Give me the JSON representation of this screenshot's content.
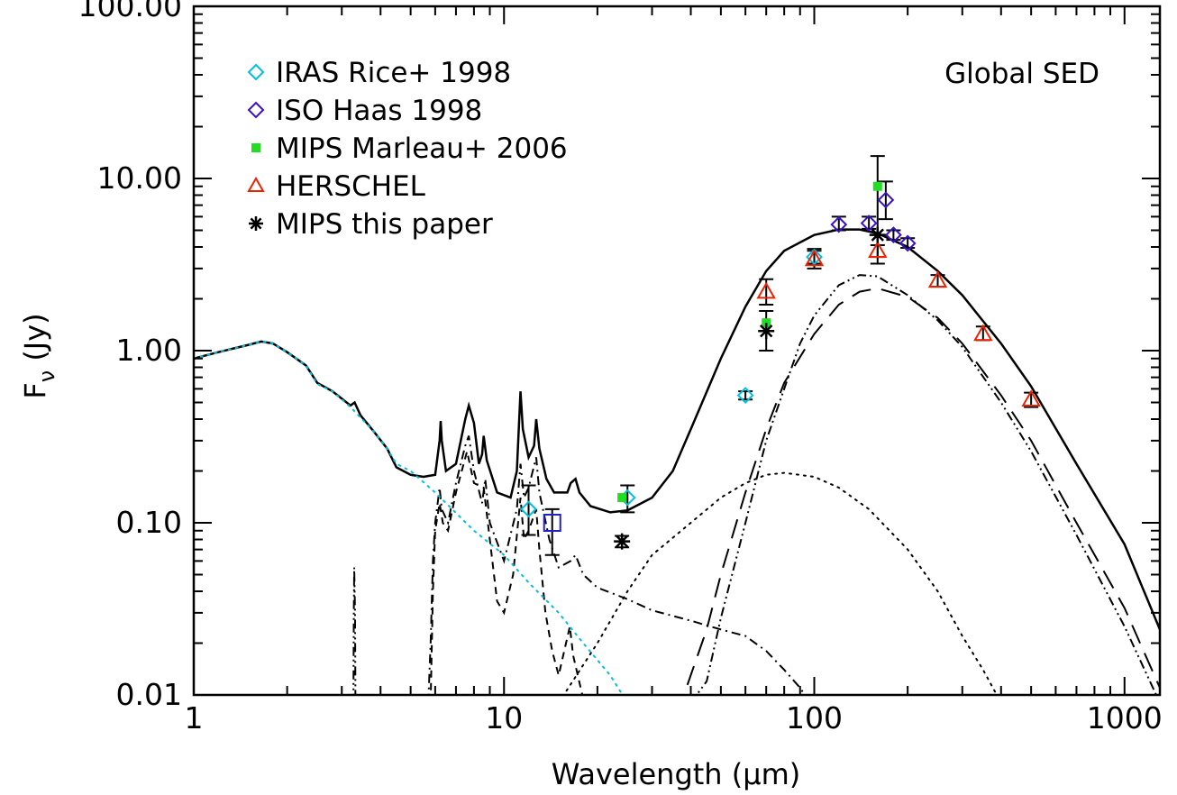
{
  "chart_data": {
    "type": "scatter",
    "xlabel": "Wavelength (µm)",
    "ylabel_main": "F",
    "ylabel_sub": "ν",
    "ylabel_unit": "(Jy)",
    "xscale": "log",
    "yscale": "log",
    "xlim": [
      1,
      1300
    ],
    "ylim": [
      0.01,
      100
    ],
    "x_ticks": [
      1,
      10,
      100,
      1000
    ],
    "x_tick_labels": [
      "1",
      "10",
      "100",
      "1000"
    ],
    "y_ticks": [
      0.01,
      0.1,
      1,
      10,
      100
    ],
    "y_tick_labels": [
      "0.01",
      "0.10",
      "1.00",
      "10.00",
      "100.00"
    ],
    "annotation": "Global SED",
    "legend_position": "top-left",
    "series": [
      {
        "name": "IRAS Rice+ 1998",
        "marker": "diamond",
        "color": "#00bfe0",
        "points": [
          {
            "x": 12,
            "y": 0.12,
            "yerr": [
              0.085,
              0.165
            ]
          },
          {
            "x": 25,
            "y": 0.14,
            "yerr": [
              0.115,
              0.165
            ]
          },
          {
            "x": 60,
            "y": 0.55,
            "yerr": [
              0.52,
              0.58
            ]
          },
          {
            "x": 100,
            "y": 3.5,
            "yerr": [
              3.2,
              3.8
            ]
          }
        ]
      },
      {
        "name": "ISO Haas 1998",
        "marker": "diamond",
        "color": "#3a10c8",
        "points": [
          {
            "x": 120,
            "y": 5.4,
            "yerr": [
              5.0,
              6.0
            ]
          },
          {
            "x": 150,
            "y": 5.5,
            "yerr": [
              5.1,
              6.0
            ]
          },
          {
            "x": 170,
            "y": 7.5,
            "yerr": [
              5.8,
              9.6
            ]
          },
          {
            "x": 180,
            "y": 4.7,
            "yerr": [
              4.4,
              5.0
            ]
          },
          {
            "x": 200,
            "y": 4.2,
            "yerr": [
              3.95,
              4.5
            ]
          }
        ]
      },
      {
        "name": "MIPS Marleau+ 2006",
        "marker": "square",
        "color": "#22dd22",
        "points": [
          {
            "x": 24,
            "y": 0.14
          },
          {
            "x": 70,
            "y": 1.45
          },
          {
            "x": 160,
            "y": 9.0
          }
        ]
      },
      {
        "name": "HERSCHEL",
        "marker": "triangle",
        "color": "#ee2200",
        "points": [
          {
            "x": 70,
            "y": 2.2,
            "yerr": [
              1.85,
              2.6
            ]
          },
          {
            "x": 100,
            "y": 3.4,
            "yerr": [
              3.0,
              3.9
            ]
          },
          {
            "x": 160,
            "y": 3.8,
            "yerr": [
              3.5,
              4.1
            ]
          },
          {
            "x": 250,
            "y": 2.55,
            "yerr": [
              2.35,
              2.75
            ]
          },
          {
            "x": 350,
            "y": 1.25,
            "yerr": [
              1.15,
              1.38
            ]
          },
          {
            "x": 500,
            "y": 0.52,
            "yerr": [
              0.47,
              0.57
            ]
          }
        ]
      },
      {
        "name": "MIPS this paper",
        "marker": "asterisk",
        "color": "#000000",
        "points": [
          {
            "x": 24,
            "y": 0.078,
            "yerr": [
              0.072,
              0.084
            ]
          },
          {
            "x": 70,
            "y": 1.3,
            "yerr": [
              1.0,
              1.7
            ]
          },
          {
            "x": 160,
            "y": 4.7,
            "yerr": [
              3.2,
              13.5
            ]
          }
        ]
      }
    ],
    "extra_points": [
      {
        "marker": "square",
        "color": "#2020cc",
        "x": 14.3,
        "y": 0.1,
        "yerr": [
          0.065,
          0.12
        ]
      }
    ],
    "model_curves": [
      {
        "style": "solid",
        "color": "#000000",
        "points": [
          [
            1,
            0.9
          ],
          [
            1.2,
            0.98
          ],
          [
            1.5,
            1.08
          ],
          [
            1.65,
            1.13
          ],
          [
            1.8,
            1.1
          ],
          [
            2.0,
            0.98
          ],
          [
            2.3,
            0.82
          ],
          [
            2.5,
            0.65
          ],
          [
            2.8,
            0.58
          ],
          [
            3.2,
            0.48
          ],
          [
            3.3,
            0.5
          ],
          [
            3.45,
            0.42
          ],
          [
            3.8,
            0.34
          ],
          [
            4.2,
            0.27
          ],
          [
            4.5,
            0.21
          ],
          [
            5.0,
            0.19
          ],
          [
            5.5,
            0.185
          ],
          [
            6.0,
            0.19
          ],
          [
            6.2,
            0.3
          ],
          [
            6.25,
            0.39
          ],
          [
            6.3,
            0.3
          ],
          [
            6.5,
            0.2
          ],
          [
            7.0,
            0.22
          ],
          [
            7.5,
            0.4
          ],
          [
            7.7,
            0.48
          ],
          [
            8.0,
            0.38
          ],
          [
            8.3,
            0.22
          ],
          [
            8.5,
            0.25
          ],
          [
            8.6,
            0.32
          ],
          [
            8.8,
            0.23
          ],
          [
            9.5,
            0.15
          ],
          [
            10.5,
            0.14
          ],
          [
            11.0,
            0.2
          ],
          [
            11.3,
            0.58
          ],
          [
            11.5,
            0.35
          ],
          [
            12.0,
            0.24
          ],
          [
            12.5,
            0.28
          ],
          [
            12.7,
            0.4
          ],
          [
            13.0,
            0.27
          ],
          [
            13.7,
            0.18
          ],
          [
            14.5,
            0.15
          ],
          [
            16.0,
            0.15
          ],
          [
            16.4,
            0.17
          ],
          [
            17.0,
            0.18
          ],
          [
            17.5,
            0.15
          ],
          [
            19,
            0.125
          ],
          [
            22,
            0.115
          ],
          [
            25,
            0.118
          ],
          [
            30,
            0.14
          ],
          [
            35,
            0.2
          ],
          [
            40,
            0.35
          ],
          [
            50,
            0.9
          ],
          [
            60,
            1.8
          ],
          [
            70,
            2.9
          ],
          [
            80,
            3.8
          ],
          [
            100,
            4.7
          ],
          [
            120,
            5.05
          ],
          [
            140,
            5.05
          ],
          [
            160,
            4.8
          ],
          [
            200,
            4.0
          ],
          [
            250,
            2.9
          ],
          [
            300,
            2.1
          ],
          [
            400,
            1.1
          ],
          [
            500,
            0.62
          ],
          [
            700,
            0.22
          ],
          [
            1000,
            0.075
          ],
          [
            1300,
            0.024
          ]
        ]
      },
      {
        "style": "dash-dot-dot",
        "color": "#000000",
        "points": [
          [
            40,
            0.009
          ],
          [
            45,
            0.012
          ],
          [
            50,
            0.028
          ],
          [
            60,
            0.1
          ],
          [
            70,
            0.3
          ],
          [
            80,
            0.6
          ],
          [
            90,
            1.1
          ],
          [
            100,
            1.6
          ],
          [
            120,
            2.4
          ],
          [
            140,
            2.75
          ],
          [
            160,
            2.7
          ],
          [
            200,
            2.1
          ],
          [
            250,
            1.5
          ],
          [
            300,
            1.05
          ],
          [
            400,
            0.5
          ],
          [
            500,
            0.26
          ],
          [
            700,
            0.085
          ],
          [
            1000,
            0.025
          ],
          [
            1300,
            0.009
          ]
        ]
      },
      {
        "style": "long-dash",
        "color": "#000000",
        "points": [
          [
            35,
            0.008
          ],
          [
            38,
            0.01
          ],
          [
            45,
            0.024
          ],
          [
            50,
            0.05
          ],
          [
            60,
            0.15
          ],
          [
            70,
            0.35
          ],
          [
            80,
            0.65
          ],
          [
            100,
            1.25
          ],
          [
            120,
            1.85
          ],
          [
            140,
            2.2
          ],
          [
            160,
            2.3
          ],
          [
            200,
            2.05
          ],
          [
            250,
            1.55
          ],
          [
            300,
            1.1
          ],
          [
            400,
            0.55
          ],
          [
            500,
            0.3
          ],
          [
            700,
            0.1
          ],
          [
            1000,
            0.032
          ],
          [
            1300,
            0.011
          ]
        ]
      },
      {
        "style": "dotted",
        "color": "#000000",
        "points": [
          [
            15,
            0.009
          ],
          [
            20,
            0.02
          ],
          [
            25,
            0.04
          ],
          [
            30,
            0.065
          ],
          [
            40,
            0.1
          ],
          [
            50,
            0.14
          ],
          [
            60,
            0.17
          ],
          [
            70,
            0.19
          ],
          [
            80,
            0.195
          ],
          [
            100,
            0.185
          ],
          [
            120,
            0.16
          ],
          [
            150,
            0.12
          ],
          [
            200,
            0.07
          ],
          [
            250,
            0.04
          ],
          [
            300,
            0.022
          ],
          [
            350,
            0.014
          ],
          [
            400,
            0.009
          ]
        ]
      },
      {
        "style": "dash-dot",
        "color": "#000000",
        "points": [
          [
            5.7,
            0.009
          ],
          [
            5.8,
            0.02
          ],
          [
            5.9,
            0.06
          ],
          [
            6.0,
            0.1
          ],
          [
            6.2,
            0.16
          ],
          [
            6.3,
            0.12
          ],
          [
            6.6,
            0.1
          ],
          [
            7.0,
            0.17
          ],
          [
            7.5,
            0.28
          ],
          [
            7.7,
            0.32
          ],
          [
            8.0,
            0.2
          ],
          [
            8.5,
            0.13
          ],
          [
            8.7,
            0.18
          ],
          [
            9.0,
            0.1
          ],
          [
            10.0,
            0.06
          ],
          [
            11.0,
            0.12
          ],
          [
            11.3,
            0.22
          ],
          [
            11.6,
            0.14
          ],
          [
            12.0,
            0.16
          ],
          [
            12.7,
            0.24
          ],
          [
            13.0,
            0.15
          ],
          [
            14.0,
            0.08
          ],
          [
            15.0,
            0.055
          ],
          [
            16.4,
            0.06
          ],
          [
            17.0,
            0.065
          ],
          [
            18.0,
            0.05
          ],
          [
            20,
            0.042
          ],
          [
            25,
            0.036
          ],
          [
            30,
            0.031
          ],
          [
            40,
            0.027
          ],
          [
            50,
            0.024
          ],
          [
            60,
            0.022
          ],
          [
            70,
            0.018
          ],
          [
            80,
            0.014
          ],
          [
            90,
            0.011
          ],
          [
            95,
            0.0095
          ]
        ]
      },
      {
        "style": "dash-dot-dot",
        "color": "#000000",
        "points": [
          [
            3.27,
            0.009
          ],
          [
            3.28,
            0.03
          ],
          [
            3.29,
            0.055
          ],
          [
            3.31,
            0.03
          ],
          [
            3.32,
            0.009
          ]
        ]
      },
      {
        "style": "dashed",
        "color": "#000000",
        "points": [
          [
            5.8,
            0.009
          ],
          [
            5.9,
            0.04
          ],
          [
            6.0,
            0.09
          ],
          [
            6.2,
            0.13
          ],
          [
            6.35,
            0.1
          ],
          [
            6.6,
            0.09
          ],
          [
            7.0,
            0.15
          ],
          [
            7.6,
            0.26
          ],
          [
            8.0,
            0.17
          ],
          [
            8.6,
            0.16
          ],
          [
            9.0,
            0.08
          ],
          [
            9.5,
            0.035
          ],
          [
            10.0,
            0.03
          ],
          [
            10.7,
            0.05
          ],
          [
            11.3,
            0.14
          ],
          [
            11.6,
            0.08
          ],
          [
            12.0,
            0.09
          ],
          [
            12.7,
            0.12
          ],
          [
            13.0,
            0.07
          ],
          [
            13.6,
            0.03
          ],
          [
            14.3,
            0.018
          ],
          [
            15,
            0.013
          ],
          [
            16.3,
            0.025
          ],
          [
            16.7,
            0.017
          ],
          [
            18,
            0.0095
          ]
        ]
      },
      {
        "style": "dotted",
        "color": "#00bfe0",
        "points": [
          [
            1,
            0.9
          ],
          [
            1.2,
            0.98
          ],
          [
            1.5,
            1.08
          ],
          [
            1.65,
            1.13
          ],
          [
            1.8,
            1.1
          ],
          [
            2.0,
            0.98
          ],
          [
            2.3,
            0.82
          ],
          [
            2.5,
            0.64
          ],
          [
            2.8,
            0.58
          ],
          [
            3.2,
            0.47
          ],
          [
            3.8,
            0.34
          ],
          [
            4.2,
            0.27
          ],
          [
            4.5,
            0.22
          ],
          [
            5.0,
            0.2
          ],
          [
            6,
            0.15
          ],
          [
            8,
            0.09
          ],
          [
            10,
            0.065
          ],
          [
            12,
            0.045
          ],
          [
            15,
            0.03
          ],
          [
            18,
            0.02
          ],
          [
            22,
            0.013
          ],
          [
            25,
            0.009
          ]
        ]
      }
    ]
  }
}
